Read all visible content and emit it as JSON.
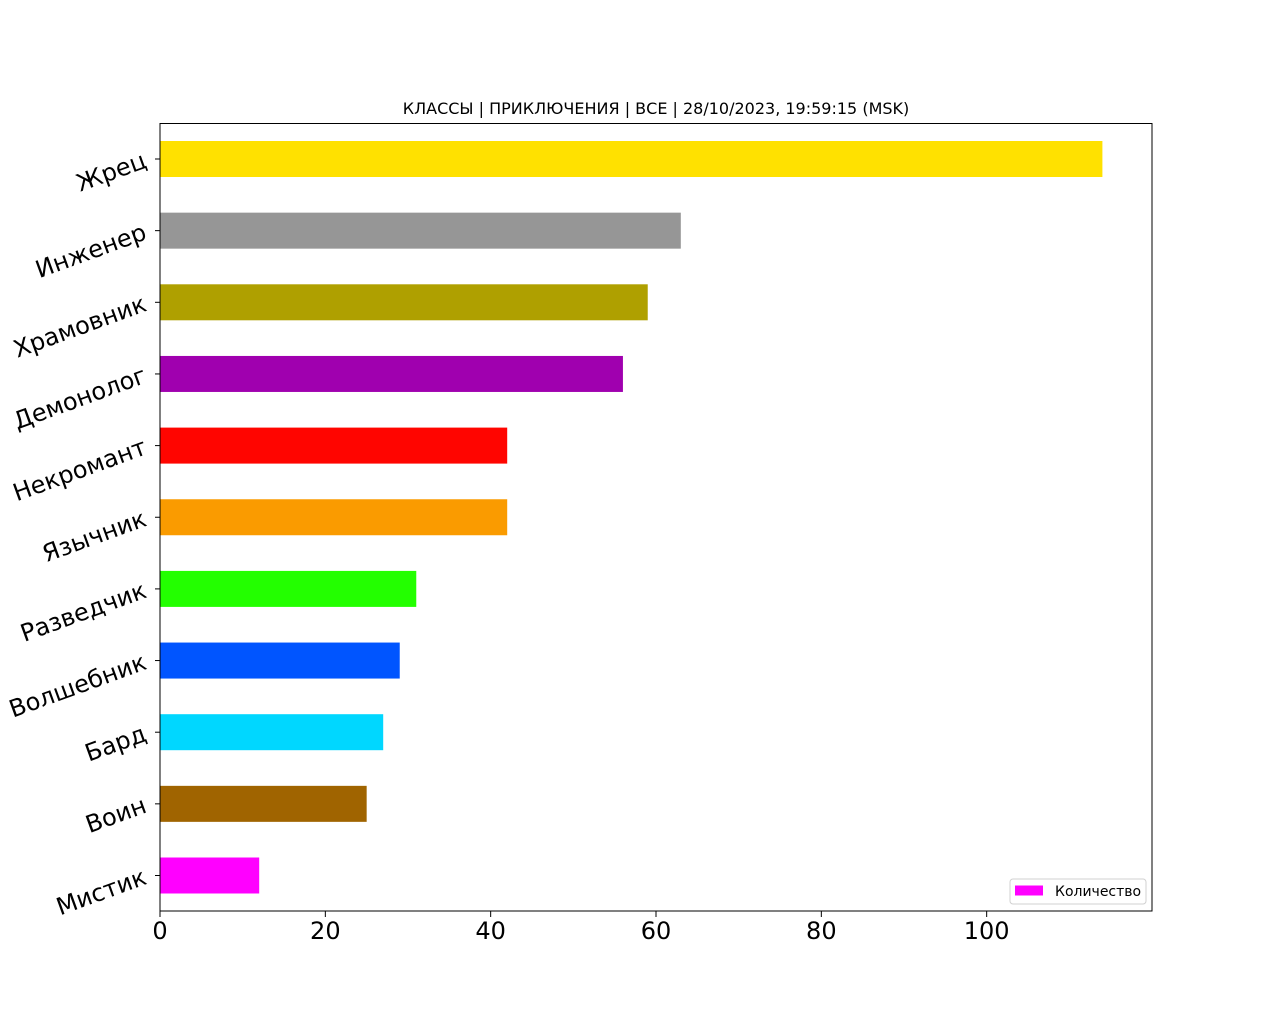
{
  "chart_data": {
    "type": "bar",
    "orientation": "horizontal",
    "title": "КЛАССЫ | ПРИКЛЮЧЕНИЯ | ВСЕ | 28/10/2023, 19:59:15 (MSK)",
    "xlabel": "",
    "ylabel": "",
    "categories": [
      "Жрец",
      "Инженер",
      "Храмовник",
      "Демонолог",
      "Некромант",
      "Язычник",
      "Разведчик",
      "Волшебник",
      "Бард",
      "Воин",
      "Мистик"
    ],
    "series": [
      {
        "name": "Количество",
        "values": [
          114,
          63,
          59,
          56,
          42,
          42,
          31,
          29,
          27,
          25,
          12
        ]
      }
    ],
    "colors": [
      "#ffe100",
      "#969696",
      "#afa000",
      "#a000af",
      "#ff0500",
      "#fa9b00",
      "#23ff00",
      "#0055ff",
      "#00d7ff",
      "#a06400",
      "#ff00ff"
    ],
    "legend_color": "#ff00ff",
    "xlim": [
      0,
      120
    ],
    "xticks": [
      0,
      20,
      40,
      60,
      80,
      100
    ],
    "grid": false,
    "legend_position": "lower-right"
  }
}
